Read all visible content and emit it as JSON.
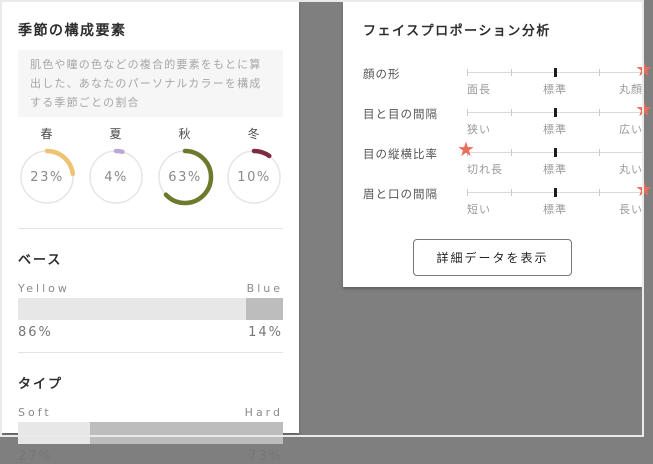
{
  "left_panel": {
    "title": "季節の構成要素",
    "description": "肌色や瞳の色などの複合的要素をもとに算出した、あなたのパーソナルカラーを構成する季節ごとの割合",
    "seasons": [
      {
        "label": "春",
        "percent": 23,
        "percent_label": "23%",
        "color": "#eec374"
      },
      {
        "label": "夏",
        "percent": 4,
        "percent_label": "4%",
        "color": "#bda6d8"
      },
      {
        "label": "秋",
        "percent": 63,
        "percent_label": "63%",
        "color": "#6d7a2c"
      },
      {
        "label": "冬",
        "percent": 10,
        "percent_label": "10%",
        "color": "#7c2b40"
      }
    ],
    "base": {
      "title": "ベース",
      "left_label": "Yellow",
      "right_label": "Blue",
      "left_percent": 86,
      "left_percent_label": "86%",
      "right_percent_label": "14%"
    },
    "type": {
      "title": "タイプ",
      "left_label": "Soft",
      "right_label": "Hard",
      "left_percent": 27,
      "left_percent_label": "27%",
      "right_percent_label": "73%"
    }
  },
  "right_panel": {
    "title": "フェイスプロポーション分析",
    "star_glyph": "★",
    "star_color": "#ea6d5a",
    "rows": [
      {
        "label": "顔の形",
        "left": "面長",
        "center": "標準",
        "right": "丸顔",
        "star": "right",
        "star_class": "fp-star star-right"
      },
      {
        "label": "目と目の間隔",
        "left": "狭い",
        "center": "標準",
        "right": "広い",
        "star": "right",
        "star_class": "fp-star star-right"
      },
      {
        "label": "目の縦横比率",
        "left": "切れ長",
        "center": "標準",
        "right": "丸い",
        "star": "left",
        "star_class": "fp-star star-left"
      },
      {
        "label": "眉と口の間隔",
        "left": "短い",
        "center": "標準",
        "right": "長い",
        "star": "right",
        "star_class": "fp-star star-right"
      }
    ],
    "button_label": "詳細データを表示"
  },
  "chart_data": [
    {
      "type": "pie",
      "title": "季節の構成要素",
      "categories": [
        "春",
        "夏",
        "秋",
        "冬"
      ],
      "values": [
        23,
        4,
        63,
        10
      ],
      "unit": "%",
      "colors": [
        "#eec374",
        "#bda6d8",
        "#6d7a2c",
        "#7c2b40"
      ],
      "note": "four donut gauges, arc from 12 o'clock clockwise"
    },
    {
      "type": "bar",
      "title": "ベース",
      "categories": [
        "Yellow",
        "Blue"
      ],
      "values": [
        86,
        14
      ],
      "unit": "%",
      "note": "single stacked horizontal bar, light segment = Yellow, dark segment = Blue"
    },
    {
      "type": "bar",
      "title": "タイプ",
      "categories": [
        "Soft",
        "Hard"
      ],
      "values": [
        27,
        73
      ],
      "unit": "%",
      "note": "single stacked horizontal bar, light segment = Soft, dark segment = Hard"
    }
  ]
}
